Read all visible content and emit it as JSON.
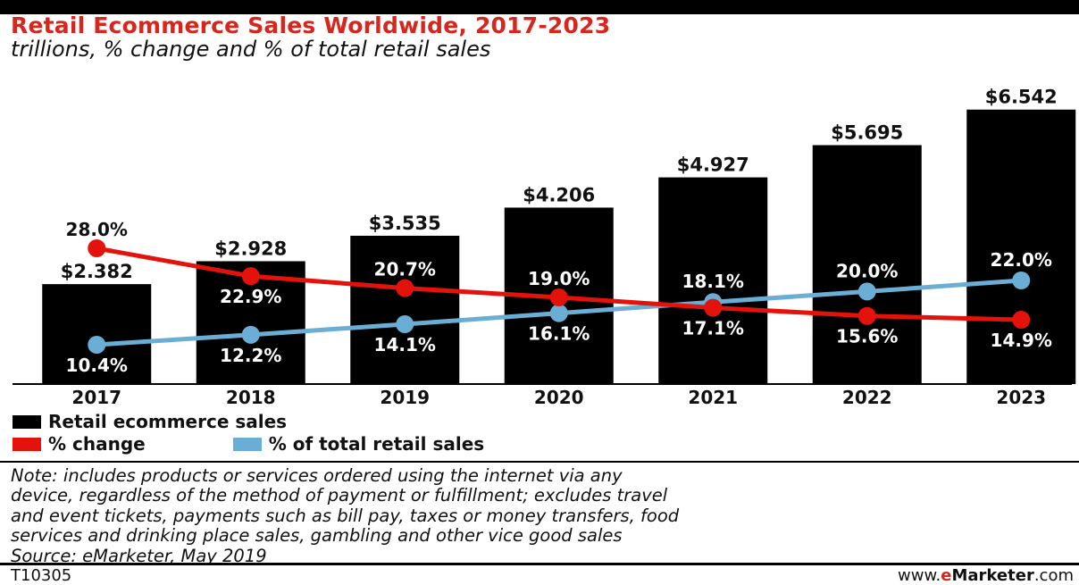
{
  "header": {
    "title": "Retail Ecommerce Sales Worldwide, 2017-2023",
    "subtitle": "trillions, % change and % of total retail sales"
  },
  "chart_data": {
    "type": "bar",
    "categories": [
      "2017",
      "2018",
      "2019",
      "2020",
      "2021",
      "2022",
      "2023"
    ],
    "series": [
      {
        "name": "Retail ecommerce sales",
        "kind": "bar",
        "color": "#000000",
        "values": [
          2.382,
          2.928,
          3.535,
          4.206,
          4.927,
          5.695,
          6.542
        ],
        "labels": [
          "$2.382",
          "$2.928",
          "$3.535",
          "$4.206",
          "$4.927",
          "$5.695",
          "$6.542"
        ]
      },
      {
        "name": "% change",
        "kind": "line",
        "color": "#e3120b",
        "values": [
          28.0,
          22.9,
          20.7,
          19.0,
          17.1,
          15.6,
          14.9
        ],
        "labels": [
          "28.0%",
          "22.9%",
          "20.7%",
          "19.0%",
          "17.1%",
          "15.6%",
          "14.9%"
        ]
      },
      {
        "name": "% of total retail sales",
        "kind": "line",
        "color": "#6aaed6",
        "values": [
          10.4,
          12.2,
          14.1,
          16.1,
          18.1,
          20.0,
          22.0
        ],
        "labels": [
          "10.4%",
          "12.2%",
          "14.1%",
          "16.1%",
          "18.1%",
          "20.0%",
          "22.0%"
        ]
      }
    ],
    "legend_position": "bottom-left"
  },
  "legend": {
    "sales_label": "Retail ecommerce sales",
    "change_label": "% change",
    "share_label": "% of total retail sales"
  },
  "note": {
    "lines": [
      "Note: includes products or services ordered using the internet via any",
      "device, regardless of the method of payment or fulfillment; excludes travel",
      "and event tickets, payments such as bill pay, taxes or money transfers, food",
      "services and drinking place sales, gambling and other vice good sales",
      "Source: eMarketer, May 2019"
    ]
  },
  "footer": {
    "chart_id": "T10305",
    "site_prefix": "www.",
    "site_brand_e": "e",
    "site_brand_rest": "Marketer",
    "site_suffix": ".com"
  }
}
